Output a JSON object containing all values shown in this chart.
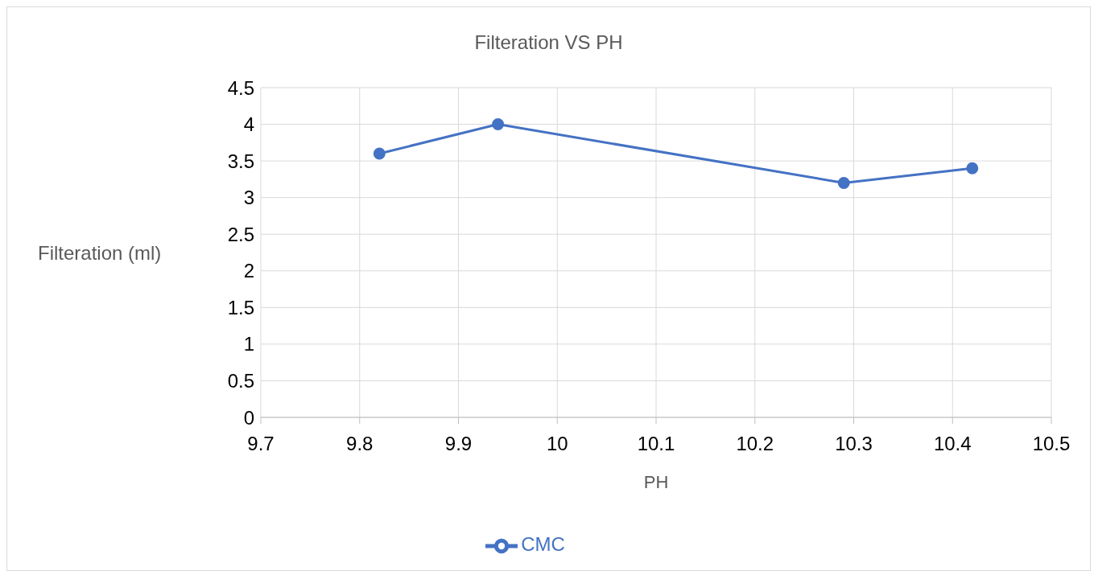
{
  "chart_data": {
    "type": "line",
    "title": "Filteration VS PH",
    "xlabel": "PH",
    "ylabel": "Filteration (ml)",
    "x": [
      9.82,
      9.94,
      10.29,
      10.42
    ],
    "series": [
      {
        "name": "CMC",
        "color": "#4472c4",
        "values": [
          3.6,
          4.0,
          3.2,
          3.4
        ]
      }
    ],
    "xlim": [
      9.7,
      10.5
    ],
    "xticks": [
      9.7,
      9.8,
      9.9,
      10,
      10.1,
      10.2,
      10.3,
      10.4,
      10.5
    ],
    "ylim": [
      0,
      4.5
    ],
    "yticks": [
      0,
      0.5,
      1,
      1.5,
      2,
      2.5,
      3,
      3.5,
      4,
      4.5
    ],
    "grid": true,
    "legend": "bottom",
    "marker": "circle",
    "line_style": "solid"
  }
}
